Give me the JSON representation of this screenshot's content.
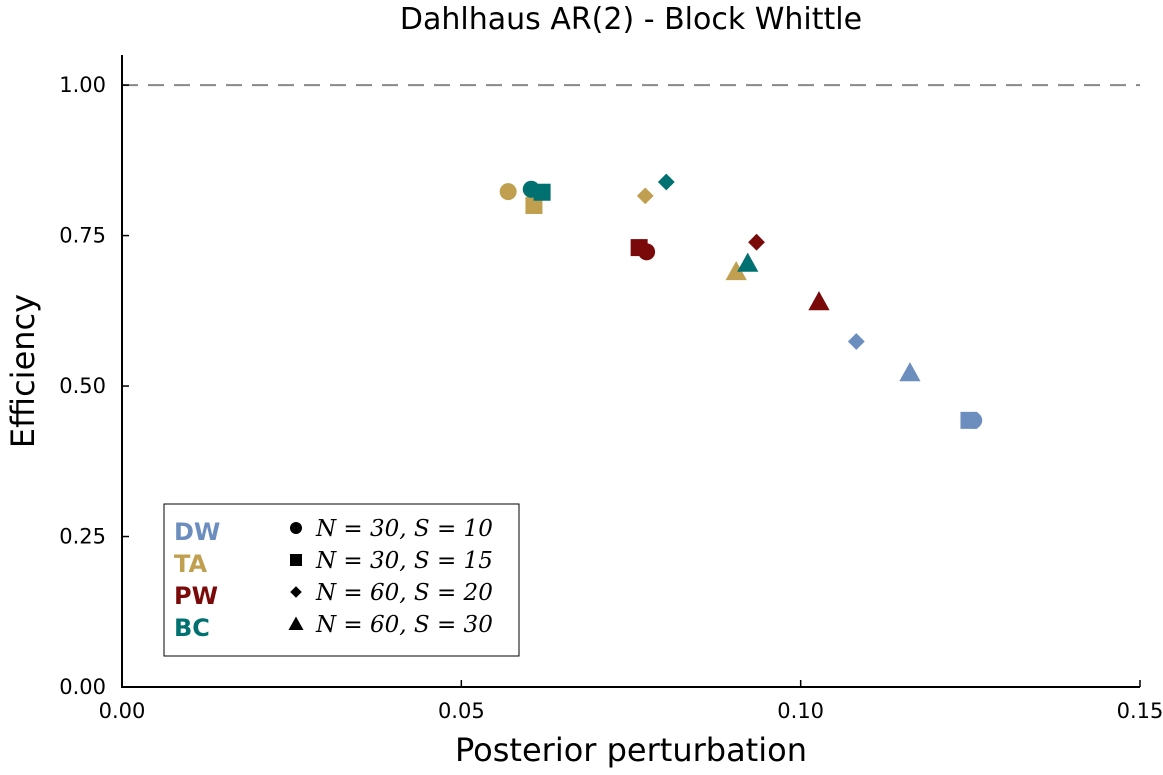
{
  "chart_data": {
    "type": "scatter",
    "title": "Dahlhaus AR(2) - Block Whittle",
    "xlabel": "Posterior perturbation",
    "ylabel": "Efficiency",
    "xlim": [
      0,
      0.15
    ],
    "ylim": [
      0,
      1.05
    ],
    "xticks": [
      "0.00",
      "0.05",
      "0.10",
      "0.15"
    ],
    "yticks": [
      "0.00",
      "0.25",
      "0.50",
      "0.75",
      "1.00"
    ],
    "reference_line": {
      "y": 1.0,
      "style": "dashed",
      "color": "#808080"
    },
    "grid": false,
    "legend_position": "bottom-left",
    "methods": [
      {
        "name": "DW",
        "color": "#6c8ebf"
      },
      {
        "name": "TA",
        "color": "#c0a050"
      },
      {
        "name": "PW",
        "color": "#7a0a0a"
      },
      {
        "name": "BC",
        "color": "#007070"
      }
    ],
    "configs": [
      {
        "marker": "circle",
        "label": "N = 30, S = 10"
      },
      {
        "marker": "square",
        "label": "N = 30, S = 15"
      },
      {
        "marker": "diamond",
        "label": "N = 60, S = 20"
      },
      {
        "marker": "triangle",
        "label": "N = 60, S = 30"
      }
    ],
    "points": [
      {
        "method": "DW",
        "config": 0,
        "x": 0.1255,
        "y": 0.443
      },
      {
        "method": "DW",
        "config": 1,
        "x": 0.1248,
        "y": 0.443
      },
      {
        "method": "DW",
        "config": 2,
        "x": 0.1082,
        "y": 0.574
      },
      {
        "method": "DW",
        "config": 3,
        "x": 0.1161,
        "y": 0.522
      },
      {
        "method": "TA",
        "config": 0,
        "x": 0.0569,
        "y": 0.823
      },
      {
        "method": "TA",
        "config": 1,
        "x": 0.0607,
        "y": 0.8
      },
      {
        "method": "TA",
        "config": 2,
        "x": 0.0771,
        "y": 0.816
      },
      {
        "method": "TA",
        "config": 3,
        "x": 0.0905,
        "y": 0.69
      },
      {
        "method": "PW",
        "config": 0,
        "x": 0.0773,
        "y": 0.723
      },
      {
        "method": "PW",
        "config": 1,
        "x": 0.0762,
        "y": 0.73
      },
      {
        "method": "PW",
        "config": 2,
        "x": 0.0935,
        "y": 0.739
      },
      {
        "method": "PW",
        "config": 3,
        "x": 0.1027,
        "y": 0.64
      },
      {
        "method": "BC",
        "config": 0,
        "x": 0.0603,
        "y": 0.827
      },
      {
        "method": "BC",
        "config": 1,
        "x": 0.0619,
        "y": 0.822
      },
      {
        "method": "BC",
        "config": 2,
        "x": 0.0802,
        "y": 0.839
      },
      {
        "method": "BC",
        "config": 3,
        "x": 0.0922,
        "y": 0.704
      }
    ]
  }
}
